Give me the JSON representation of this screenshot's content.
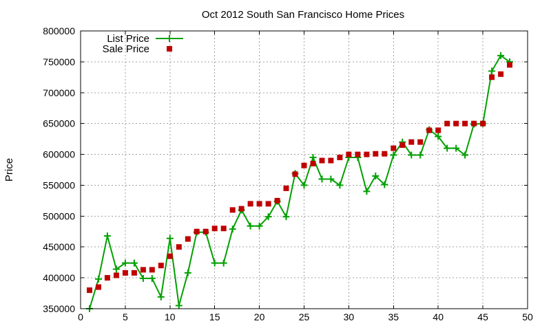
{
  "chart_data": {
    "type": "line",
    "title": "Oct 2012 South San Francisco Home Prices",
    "xlabel": "",
    "ylabel": "Price",
    "xlim": [
      0,
      50
    ],
    "ylim": [
      350000,
      800000
    ],
    "x_ticks": [
      0,
      5,
      10,
      15,
      20,
      25,
      30,
      35,
      40,
      45,
      50
    ],
    "y_ticks": [
      350000,
      400000,
      450000,
      500000,
      550000,
      600000,
      650000,
      700000,
      750000,
      800000
    ],
    "x_tick_labels": [
      "0",
      "5",
      "10",
      "15",
      "20",
      "25",
      "30",
      "35",
      "40",
      "45",
      "50"
    ],
    "y_tick_labels": [
      "350000",
      "400000",
      "450000",
      "500000",
      "550000",
      "600000",
      "650000",
      "700000",
      "750000",
      "800000"
    ],
    "grid": true,
    "legend_position": "top-left",
    "x": [
      1,
      2,
      3,
      4,
      5,
      6,
      7,
      8,
      9,
      10,
      11,
      12,
      13,
      14,
      15,
      16,
      17,
      18,
      19,
      20,
      21,
      22,
      23,
      24,
      25,
      26,
      27,
      28,
      29,
      30,
      31,
      32,
      33,
      34,
      35,
      36,
      37,
      38,
      39,
      40,
      41,
      42,
      43,
      44,
      45,
      46,
      47,
      48
    ],
    "series": [
      {
        "name": "List Price",
        "style": "line-with-plus-markers",
        "color": "#00a000",
        "values": [
          350000,
          398000,
          468000,
          414000,
          424000,
          424000,
          399000,
          399000,
          369000,
          464000,
          355000,
          408000,
          474000,
          474000,
          424000,
          424000,
          479000,
          510000,
          484000,
          484000,
          499000,
          524000,
          499000,
          569000,
          550000,
          595000,
          560000,
          560000,
          550000,
          595000,
          595000,
          540000,
          565000,
          551000,
          599000,
          620000,
          599000,
          599000,
          640000,
          629000,
          610000,
          610000,
          599000,
          649000,
          650000,
          735000,
          760000,
          750000
        ]
      },
      {
        "name": "Sale Price",
        "style": "square-markers",
        "color": "#c00000",
        "values": [
          380000,
          385000,
          400000,
          404000,
          408000,
          408000,
          413000,
          413000,
          420000,
          435000,
          450000,
          463000,
          475000,
          475000,
          480000,
          480000,
          510000,
          512000,
          520000,
          520000,
          520000,
          525000,
          545000,
          568000,
          582000,
          585000,
          590000,
          590000,
          595000,
          600000,
          600000,
          600000,
          601000,
          601000,
          610000,
          615000,
          620000,
          620000,
          639000,
          639000,
          650000,
          650000,
          650000,
          650000,
          650000,
          725000,
          730000,
          745000
        ]
      }
    ]
  }
}
